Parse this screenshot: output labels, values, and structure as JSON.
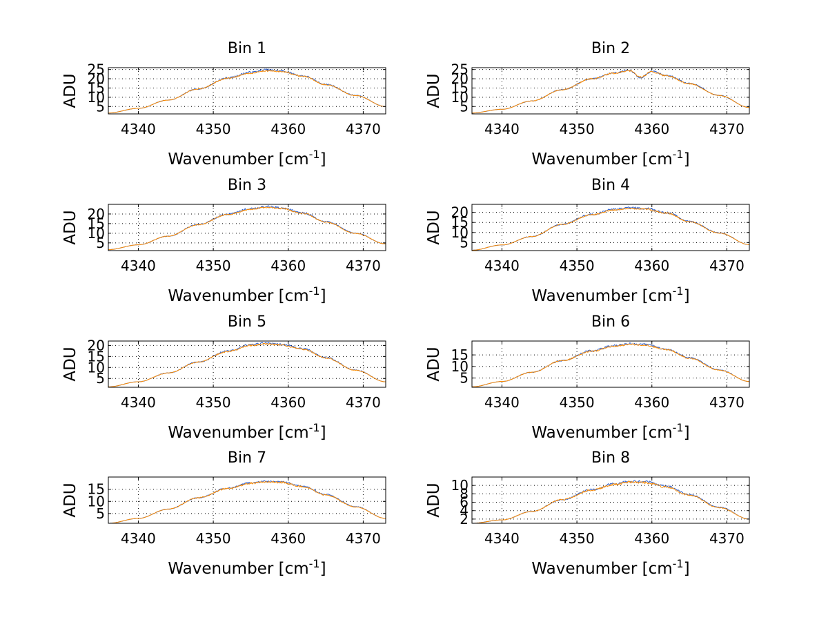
{
  "colors": {
    "series_a": "#2a5fd0",
    "series_b": "#ff8c00",
    "grid": "#000000"
  },
  "chart_data": [
    {
      "type": "line",
      "title": "Bin 1",
      "xlabel": "Wavenumber [cm",
      "xlabel_sup": "-1",
      "xlabel_suffix": "]",
      "ylabel": "ADU",
      "xlim": [
        4336,
        4373
      ],
      "ylim": [
        1,
        26
      ],
      "xticks": [
        4340,
        4350,
        4360,
        4370
      ],
      "yticks": [
        5,
        10,
        15,
        20,
        25
      ],
      "grid": true,
      "x": [
        4336,
        4340,
        4344,
        4348,
        4352,
        4355,
        4357,
        4359,
        4362,
        4365,
        4369,
        4373
      ],
      "series": [
        {
          "values": [
            1.5,
            4.0,
            8.5,
            14.5,
            20.5,
            23.5,
            24.8,
            24.2,
            21.5,
            17.0,
            11.0,
            5.0
          ],
          "noise": 0.6
        },
        {
          "values": [
            1.5,
            4.0,
            8.5,
            14.5,
            20.3,
            23.0,
            24.3,
            23.9,
            21.3,
            16.8,
            10.9,
            5.0
          ],
          "noise": 0.4
        }
      ]
    },
    {
      "type": "line",
      "title": "Bin 2",
      "xlabel": "Wavenumber [cm",
      "xlabel_sup": "-1",
      "xlabel_suffix": "]",
      "ylabel": "ADU",
      "xlim": [
        4336,
        4373
      ],
      "ylim": [
        1,
        26
      ],
      "xticks": [
        4340,
        4350,
        4360,
        4370
      ],
      "yticks": [
        5,
        10,
        15,
        20,
        25
      ],
      "grid": true,
      "x": [
        4336,
        4340,
        4344,
        4348,
        4352,
        4355,
        4357,
        4358.5,
        4360,
        4362,
        4365,
        4369,
        4373
      ],
      "series": [
        {
          "values": [
            1.5,
            3.5,
            8.0,
            14.0,
            20.0,
            23.2,
            24.5,
            20.5,
            24.0,
            21.8,
            17.5,
            11.0,
            4.5
          ],
          "noise": 0.5
        },
        {
          "values": [
            1.5,
            3.5,
            8.0,
            14.0,
            20.0,
            23.0,
            24.3,
            21.0,
            23.8,
            21.6,
            17.3,
            10.9,
            4.5
          ],
          "noise": 0.5
        }
      ]
    },
    {
      "type": "line",
      "title": "Bin 3",
      "xlabel": "Wavenumber [cm",
      "xlabel_sup": "-1",
      "xlabel_suffix": "]",
      "ylabel": "ADU",
      "xlim": [
        4336,
        4373
      ],
      "ylim": [
        1,
        25
      ],
      "xticks": [
        4340,
        4350,
        4360,
        4370
      ],
      "yticks": [
        5,
        10,
        15,
        20
      ],
      "grid": true,
      "x": [
        4336,
        4340,
        4344,
        4348,
        4352,
        4355,
        4357,
        4359,
        4362,
        4365,
        4369,
        4373
      ],
      "series": [
        {
          "values": [
            1.5,
            4.0,
            8.5,
            14.5,
            20.0,
            22.8,
            23.8,
            23.2,
            20.5,
            16.0,
            10.0,
            4.5
          ],
          "noise": 0.6
        },
        {
          "values": [
            1.5,
            4.0,
            8.5,
            14.5,
            19.8,
            22.5,
            23.4,
            22.9,
            20.3,
            15.8,
            9.9,
            4.5
          ],
          "noise": 0.4
        }
      ]
    },
    {
      "type": "line",
      "title": "Bin 4",
      "xlabel": "Wavenumber [cm",
      "xlabel_sup": "-1",
      "xlabel_suffix": "]",
      "ylabel": "ADU",
      "xlim": [
        4336,
        4373
      ],
      "ylim": [
        1,
        24
      ],
      "xticks": [
        4340,
        4350,
        4360,
        4370
      ],
      "yticks": [
        5,
        10,
        15,
        20
      ],
      "grid": true,
      "x": [
        4336,
        4340,
        4344,
        4348,
        4352,
        4355,
        4357,
        4359,
        4362,
        4365,
        4369,
        4373
      ],
      "series": [
        {
          "values": [
            1.2,
            3.8,
            8.0,
            14.0,
            19.0,
            21.5,
            22.3,
            22.0,
            19.8,
            15.5,
            9.8,
            4.0
          ],
          "noise": 0.6
        },
        {
          "values": [
            1.2,
            3.8,
            8.0,
            14.0,
            18.8,
            21.2,
            22.0,
            21.7,
            19.6,
            15.3,
            9.7,
            4.0
          ],
          "noise": 0.4
        }
      ]
    },
    {
      "type": "line",
      "title": "Bin 5",
      "xlabel": "Wavenumber [cm",
      "xlabel_sup": "-1",
      "xlabel_suffix": "]",
      "ylabel": "ADU",
      "xlim": [
        4336,
        4373
      ],
      "ylim": [
        1,
        22
      ],
      "xticks": [
        4340,
        4350,
        4360,
        4370
      ],
      "yticks": [
        5,
        10,
        15,
        20
      ],
      "grid": true,
      "x": [
        4336,
        4340,
        4344,
        4348,
        4352,
        4355,
        4357,
        4359,
        4362,
        4365,
        4369,
        4373
      ],
      "series": [
        {
          "values": [
            1.2,
            3.5,
            7.5,
            12.5,
            17.5,
            20.3,
            21.0,
            20.5,
            18.5,
            14.5,
            8.8,
            3.5
          ],
          "noise": 0.5
        },
        {
          "values": [
            1.2,
            3.5,
            7.5,
            12.5,
            17.3,
            20.0,
            20.7,
            20.2,
            18.3,
            14.3,
            8.7,
            3.5
          ],
          "noise": 0.4
        }
      ]
    },
    {
      "type": "line",
      "title": "Bin 6",
      "xlabel": "Wavenumber [cm",
      "xlabel_sup": "-1",
      "xlabel_suffix": "]",
      "ylabel": "ADU",
      "xlim": [
        4336,
        4373
      ],
      "ylim": [
        1,
        21
      ],
      "xticks": [
        4340,
        4350,
        4360,
        4370
      ],
      "yticks": [
        5,
        10,
        15
      ],
      "grid": true,
      "x": [
        4336,
        4340,
        4344,
        4348,
        4352,
        4355,
        4357,
        4359,
        4362,
        4365,
        4369,
        4373
      ],
      "series": [
        {
          "values": [
            1.2,
            3.5,
            7.5,
            12.5,
            16.8,
            19.0,
            19.8,
            19.5,
            17.5,
            13.8,
            8.5,
            3.5
          ],
          "noise": 0.5
        },
        {
          "values": [
            1.2,
            3.5,
            7.5,
            12.5,
            16.6,
            18.8,
            19.5,
            19.2,
            17.3,
            13.6,
            8.4,
            3.5
          ],
          "noise": 0.4
        }
      ]
    },
    {
      "type": "line",
      "title": "Bin 7",
      "xlabel": "Wavenumber [cm",
      "xlabel_sup": "-1",
      "xlabel_suffix": "]",
      "ylabel": "ADU",
      "xlim": [
        4336,
        4373
      ],
      "ylim": [
        1,
        20
      ],
      "xticks": [
        4340,
        4350,
        4360,
        4370
      ],
      "yticks": [
        5,
        10,
        15
      ],
      "grid": true,
      "x": [
        4336,
        4340,
        4344,
        4348,
        4352,
        4355,
        4357,
        4359,
        4362,
        4365,
        4369,
        4373
      ],
      "series": [
        {
          "values": [
            1.0,
            3.0,
            6.8,
            11.5,
            15.5,
            17.6,
            18.2,
            18.0,
            16.2,
            12.8,
            7.8,
            3.0
          ],
          "noise": 0.4
        },
        {
          "values": [
            1.0,
            3.0,
            6.8,
            11.5,
            15.3,
            17.4,
            18.0,
            17.8,
            16.0,
            12.6,
            7.7,
            3.0
          ],
          "noise": 0.4
        }
      ]
    },
    {
      "type": "line",
      "title": "Bin 8",
      "xlabel": "Wavenumber [cm",
      "xlabel_sup": "-1",
      "xlabel_suffix": "]",
      "ylabel": "ADU",
      "xlim": [
        4336,
        4373
      ],
      "ylim": [
        1,
        12
      ],
      "xticks": [
        4340,
        4350,
        4360,
        4370
      ],
      "yticks": [
        2,
        4,
        6,
        8,
        10
      ],
      "grid": true,
      "x": [
        4336,
        4340,
        4344,
        4348,
        4352,
        4355,
        4357,
        4359,
        4362,
        4365,
        4369,
        4373
      ],
      "series": [
        {
          "values": [
            1.0,
            1.8,
            3.8,
            6.6,
            9.0,
            10.4,
            11.0,
            10.9,
            9.8,
            7.8,
            4.8,
            2.0
          ],
          "noise": 0.3
        },
        {
          "values": [
            1.0,
            1.8,
            3.8,
            6.6,
            8.9,
            10.2,
            10.8,
            10.7,
            9.6,
            7.7,
            4.7,
            2.0
          ],
          "noise": 0.3
        }
      ]
    }
  ]
}
